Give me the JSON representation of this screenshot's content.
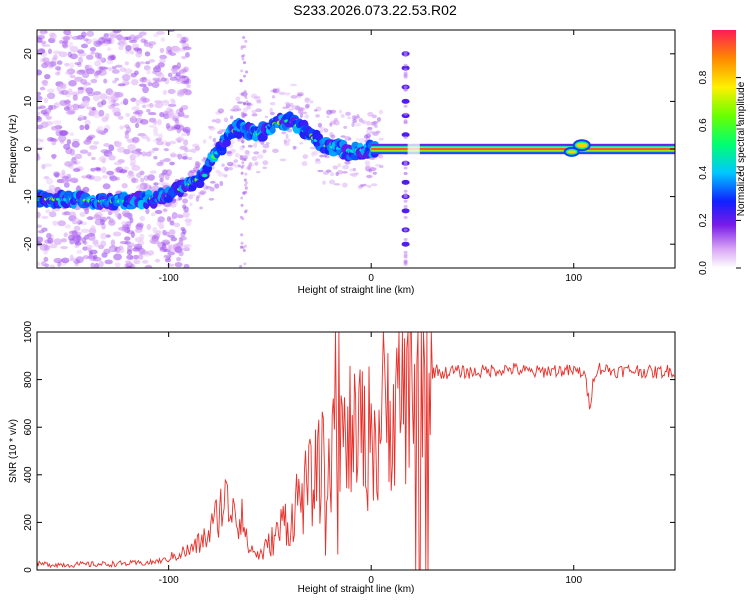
{
  "page": {
    "title": "S233.2026.073.22.53.R02"
  },
  "chart_data": [
    {
      "type": "heatmap",
      "title": "",
      "xlabel": "Height of straight line (km)",
      "ylabel": "Frequency (Hz)",
      "xlim": [
        -165,
        150
      ],
      "ylim": [
        -25,
        25
      ],
      "xticks": [
        "-100",
        "0",
        "100"
      ],
      "yticks": [
        "-20",
        "-10",
        "0",
        "10",
        "20"
      ],
      "colorbar": {
        "label": "Normalized spectral amplitude",
        "range": [
          0,
          1
        ],
        "ticks": [
          "0.0",
          "0.2",
          "0.4",
          "0.6",
          "0.8"
        ]
      },
      "ridge": {
        "x": [
          -165,
          -150,
          -140,
          -130,
          -120,
          -110,
          -100,
          -90,
          -82,
          -78,
          -72,
          -66,
          -60,
          -55,
          -50,
          -45,
          -40,
          -35,
          -30,
          -25,
          -20,
          -15,
          -10,
          -5,
          0,
          10,
          20,
          40,
          60,
          80,
          100,
          105,
          110,
          130,
          150
        ],
        "y": [
          -10.5,
          -10.6,
          -10.8,
          -11,
          -11,
          -10.5,
          -9.8,
          -7.5,
          -5.5,
          -2,
          2,
          4.5,
          3.5,
          3,
          5,
          5.5,
          6,
          4.5,
          3,
          1,
          0.5,
          0,
          -0.5,
          -0.3,
          0,
          0.2,
          0,
          0,
          0,
          0,
          0,
          1,
          0,
          0,
          0
        ]
      },
      "harmonic_line": {
        "x": 17,
        "frequencies": [
          -20,
          -17,
          -13,
          -10,
          -7,
          -3,
          0,
          3,
          7,
          10,
          13,
          17,
          20
        ]
      }
    },
    {
      "type": "line",
      "title": "",
      "xlabel": "Height of straight line (km)",
      "ylabel": "SNR (10 * v/v)",
      "xlim": [
        -165,
        150
      ],
      "ylim": [
        0,
        1000
      ],
      "xticks": [
        "-100",
        "0",
        "100"
      ],
      "yticks": [
        "0",
        "200",
        "400",
        "600",
        "800",
        "1000"
      ],
      "series": [
        {
          "color": "#e8302a",
          "x": [
            -165,
            -150,
            -130,
            -110,
            -100,
            -95,
            -90,
            -85,
            -80,
            -75,
            -72,
            -70,
            -68,
            -66,
            -64,
            -62,
            -60,
            -55,
            -50,
            -45,
            -42,
            -40,
            -38,
            -35,
            -30,
            -25,
            -20,
            -17,
            -15,
            -12,
            -10,
            -8,
            -5,
            -2,
            0,
            3,
            5,
            8,
            10,
            12,
            15,
            18,
            20,
            22,
            25,
            28,
            30,
            33,
            35,
            40,
            50,
            60,
            70,
            80,
            90,
            100,
            105,
            108,
            110,
            112,
            120,
            130,
            140,
            150
          ],
          "y": [
            25,
            22,
            25,
            30,
            45,
            70,
            80,
            110,
            150,
            250,
            310,
            230,
            330,
            180,
            280,
            130,
            90,
            60,
            110,
            170,
            230,
            150,
            280,
            300,
            360,
            420,
            500,
            980,
            600,
            450,
            620,
            520,
            600,
            500,
            650,
            480,
            680,
            650,
            720,
            680,
            750,
            780,
            820,
            840,
            830,
            850,
            830,
            840,
            825,
            835,
            830,
            840,
            845,
            830,
            840,
            835,
            830,
            690,
            820,
            850,
            835,
            840,
            830,
            840
          ]
        }
      ]
    }
  ]
}
